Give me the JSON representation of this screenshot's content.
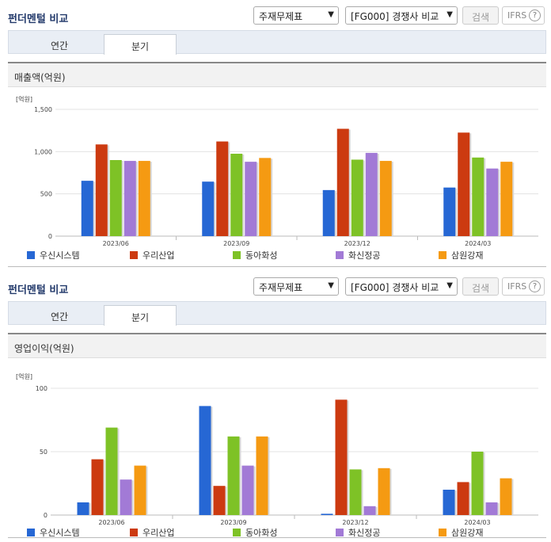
{
  "blocks": [
    {
      "title": "펀더멘털 비교",
      "select_type": "주재무제표",
      "select_compare": "[FG000] 경쟁사 비교",
      "search_label": "검색",
      "ifrs_label": "IFRS",
      "help_label": "?",
      "tabs": [
        "연간",
        "분기"
      ],
      "active_tab": 1,
      "panel_title": "매출액(억원)"
    },
    {
      "title": "펀더멘털 비교",
      "select_type": "주재무제표",
      "select_compare": "[FG000] 경쟁사 비교",
      "search_label": "검색",
      "ifrs_label": "IFRS",
      "help_label": "?",
      "tabs": [
        "연간",
        "분기"
      ],
      "active_tab": 1,
      "panel_title": "영업이익(억원)"
    }
  ],
  "chart_data": [
    {
      "type": "bar",
      "unit_label": "[억원]",
      "categories": [
        "2023/06",
        "2023/09",
        "2023/12",
        "2024/03"
      ],
      "ylim": [
        0,
        1500
      ],
      "yticks": [
        0,
        500,
        1000,
        1500
      ],
      "ytick_labels": [
        "0",
        "500",
        "1,000",
        "1,500"
      ],
      "series": [
        {
          "name": "우신시스템",
          "color": "#2667d4",
          "values": [
            655,
            645,
            545,
            575
          ]
        },
        {
          "name": "우리산업",
          "color": "#cc3a10",
          "values": [
            1085,
            1120,
            1270,
            1225
          ]
        },
        {
          "name": "동아화성",
          "color": "#7ec226",
          "values": [
            900,
            975,
            905,
            930
          ]
        },
        {
          "name": "화신정공",
          "color": "#a27ad6",
          "values": [
            890,
            880,
            985,
            800
          ]
        },
        {
          "name": "삼원강재",
          "color": "#f59a12",
          "values": [
            890,
            925,
            890,
            880
          ]
        }
      ]
    },
    {
      "type": "bar",
      "unit_label": "[억원]",
      "categories": [
        "2023/06",
        "2023/09",
        "2023/12",
        "2024/03"
      ],
      "ylim": [
        0,
        100
      ],
      "yticks": [
        0,
        50,
        100
      ],
      "ytick_labels": [
        "0",
        "50",
        "100"
      ],
      "series": [
        {
          "name": "우신시스템",
          "color": "#2667d4",
          "values": [
            10,
            86,
            1,
            20
          ]
        },
        {
          "name": "우리산업",
          "color": "#cc3a10",
          "values": [
            44,
            23,
            91,
            26
          ]
        },
        {
          "name": "동아화성",
          "color": "#7ec226",
          "values": [
            69,
            62,
            36,
            50
          ]
        },
        {
          "name": "화신정공",
          "color": "#a27ad6",
          "values": [
            28,
            39,
            7,
            10
          ]
        },
        {
          "name": "삼원강재",
          "color": "#f59a12",
          "values": [
            39,
            62,
            37,
            29
          ]
        }
      ]
    }
  ]
}
